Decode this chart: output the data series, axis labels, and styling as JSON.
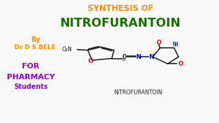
{
  "bg_outer": "#b8960a",
  "bg_inner": "#f8f8f8",
  "title_line1": "SYNTHESIS OF",
  "title_line1_color": "#ff8c00",
  "title_line2": "NITROFURANTOIN",
  "title_line2_color": "#1a6e00",
  "by_text": "By",
  "by_color": "#ff8c00",
  "author_text": "Dr D S BELE",
  "author_color": "#ff8c00",
  "for_text": "FOR",
  "for_color": "#8b00c8",
  "pharmacy_text": "PHARMACY",
  "pharmacy_color": "#8b00c8",
  "students_text": "Students",
  "students_color": "#8b00c8",
  "compound_label": "NITROFURANTOIN",
  "compound_label_color": "#222222",
  "black": "#111111",
  "blue": "#0000bb",
  "red_o": "#cc0000",
  "figsize": [
    3.2,
    1.8
  ],
  "dpi": 100
}
